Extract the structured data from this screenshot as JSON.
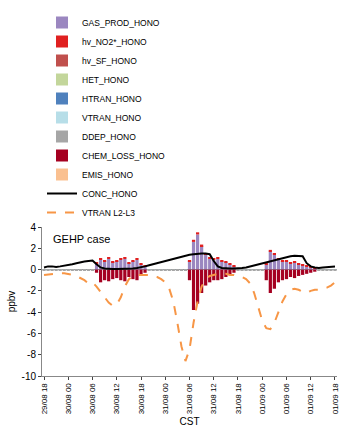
{
  "chart_data": {
    "type": "bar",
    "stacked": true,
    "grid": false,
    "legend": "top",
    "x_label": "CST",
    "y_label": "ppbv",
    "annotations": [
      {
        "text": "GEHP case"
      }
    ],
    "ylim": [
      -10,
      4
    ],
    "yticks": [
      -10,
      -8,
      -6,
      -4,
      -2,
      0,
      2,
      4
    ],
    "categories": [
      "29/08 18",
      null,
      null,
      null,
      null,
      null,
      "30/08 00",
      null,
      null,
      null,
      null,
      null,
      "30/08 06",
      null,
      null,
      null,
      null,
      null,
      "30/08 12",
      null,
      null,
      null,
      null,
      null,
      "30/08 18",
      null,
      null,
      null,
      null,
      null,
      "31/08 00",
      null,
      null,
      null,
      null,
      null,
      "31/08 06",
      null,
      null,
      null,
      null,
      null,
      "31/08 12",
      null,
      null,
      null,
      null,
      null,
      "31/08 18",
      null,
      null,
      null,
      null,
      null,
      "01/09 00",
      null,
      null,
      null,
      null,
      null,
      "01/09 06",
      null,
      null,
      null,
      null,
      null,
      "01/09 12",
      null,
      null,
      null,
      null,
      null,
      "01/09 18"
    ],
    "series": [
      {
        "name": "GAS_PROD_HONO",
        "type": "bar",
        "color": "#9b87c0",
        "values": [
          0,
          0,
          0,
          0,
          0,
          0,
          0,
          0,
          0,
          0,
          0,
          0,
          0,
          0.6,
          0.9,
          0.8,
          1.0,
          0.7,
          0.8,
          0.9,
          1.0,
          0.6,
          0.8,
          0.9,
          0.5,
          0.3,
          0,
          0,
          0,
          0,
          0,
          0,
          0,
          0,
          0,
          0,
          0.8,
          2.6,
          3.3,
          2.2,
          1.4,
          1.0,
          0.9,
          1.0,
          0.8,
          0.7,
          0.5,
          0.3,
          0,
          0,
          0,
          0,
          0,
          0,
          0,
          0.5,
          1.7,
          1.4,
          0.9,
          0.8,
          0.8,
          0.6,
          0.7,
          0.5,
          0.4,
          0.3,
          0.2,
          0.1,
          0,
          0,
          0,
          0,
          0
        ]
      },
      {
        "name": "hv_NO2*_HONO",
        "type": "bar",
        "color": "#e02020",
        "values": [
          0,
          0,
          0,
          0,
          0,
          0,
          0,
          0,
          0,
          0,
          0,
          0,
          0,
          0.05,
          0.1,
          0.1,
          0.15,
          0.1,
          0.1,
          0.15,
          0.15,
          0.1,
          0.1,
          0.1,
          0.05,
          0.05,
          0,
          0,
          0,
          0,
          0,
          0,
          0,
          0,
          0,
          0,
          0.1,
          0.2,
          0.2,
          0.15,
          0.15,
          0.1,
          0.1,
          0.1,
          0.1,
          0.1,
          0.05,
          0.05,
          0,
          0,
          0,
          0,
          0,
          0,
          0,
          0.05,
          0.15,
          0.15,
          0.1,
          0.1,
          0.1,
          0.1,
          0.1,
          0.05,
          0.05,
          0.05,
          0.05,
          0.05,
          0,
          0,
          0,
          0,
          0
        ]
      },
      {
        "name": "hv_SF_HONO",
        "type": "bar",
        "color": "#c0504d",
        "values": [
          0,
          0,
          0,
          0,
          0,
          0,
          0,
          0,
          0,
          0,
          0,
          0,
          0,
          0,
          0,
          0,
          0,
          0,
          0,
          0,
          0,
          0,
          0,
          0,
          0,
          0,
          0,
          0,
          0,
          0,
          0,
          0,
          0,
          0,
          0,
          0,
          0,
          0,
          0,
          0,
          0,
          0,
          0,
          0,
          0,
          0,
          0,
          0,
          0,
          0,
          0,
          0,
          0,
          0,
          0,
          0,
          0,
          0,
          0,
          0,
          0,
          0,
          0,
          0,
          0,
          0,
          0,
          0,
          0,
          0,
          0,
          0,
          0
        ]
      },
      {
        "name": "HET_HONO",
        "type": "bar",
        "color": "#c3d69b",
        "values": [
          0,
          0,
          0,
          0,
          0,
          0,
          0,
          0,
          0,
          0,
          0,
          0,
          0,
          0,
          0,
          0,
          0,
          0,
          0,
          0,
          0,
          0,
          0,
          0,
          0,
          0,
          0,
          0,
          0,
          0,
          0,
          0,
          0,
          0,
          0,
          0,
          0,
          0,
          0,
          0,
          0,
          0,
          0,
          0,
          0,
          0,
          0,
          0,
          0,
          0,
          0,
          0,
          0,
          0,
          0,
          0,
          0,
          0,
          0,
          0,
          0,
          0,
          0,
          0,
          0,
          0,
          0,
          0,
          0,
          0,
          0,
          0,
          0
        ]
      },
      {
        "name": "HTRAN_HONO",
        "type": "bar",
        "color": "#4f81bd",
        "values": [
          0,
          0,
          0,
          0,
          0,
          0,
          0,
          0,
          0,
          0,
          0,
          0,
          0,
          0,
          0,
          0,
          0,
          0,
          0,
          0,
          0,
          0,
          0,
          0,
          0,
          0,
          0,
          0,
          0,
          0,
          0,
          0,
          0,
          0,
          0,
          0,
          0,
          0,
          0,
          0,
          0,
          0,
          0,
          0,
          0,
          0,
          0,
          0,
          0,
          0,
          0,
          0,
          0,
          0,
          0,
          0,
          0,
          0,
          0,
          0,
          0,
          0,
          0,
          0,
          0,
          0,
          0,
          0,
          0,
          0,
          0,
          0,
          0
        ]
      },
      {
        "name": "VTRAN_HONO",
        "type": "bar",
        "color": "#b7dee8",
        "values": [
          0.05,
          0.05,
          0.05,
          0.05,
          0.05,
          0.05,
          0.05,
          0.05,
          0.05,
          0.05,
          0.05,
          0.05,
          0.05,
          0,
          0,
          0,
          0,
          0,
          0,
          0,
          0,
          0,
          0,
          0,
          0,
          0,
          0.05,
          0.05,
          0.05,
          0.05,
          0.05,
          0.05,
          0.05,
          0.05,
          0.05,
          0.05,
          0,
          0,
          0,
          0,
          0,
          0,
          0,
          0,
          0,
          0,
          0,
          0,
          0.05,
          0.05,
          0.05,
          0.05,
          0.05,
          0.05,
          0.05,
          0,
          0,
          0,
          0,
          0,
          0,
          0,
          0,
          0,
          0,
          0,
          0,
          0,
          0.05,
          0.05,
          0.05,
          0.05,
          0.05
        ]
      },
      {
        "name": "DDEP_HONO",
        "type": "bar",
        "color": "#a6a6a6",
        "values": [
          -0.05,
          -0.05,
          -0.05,
          -0.05,
          -0.05,
          -0.05,
          -0.05,
          -0.05,
          -0.05,
          -0.05,
          -0.05,
          -0.05,
          -0.05,
          0,
          0,
          0,
          0,
          0,
          0,
          0,
          0,
          0,
          0,
          0,
          0,
          0,
          -0.05,
          -0.05,
          -0.05,
          -0.05,
          -0.05,
          -0.05,
          -0.05,
          -0.05,
          -0.05,
          -0.05,
          0,
          0,
          0,
          0,
          0,
          0,
          0,
          0,
          0,
          0,
          0,
          0,
          -0.05,
          -0.05,
          -0.05,
          -0.05,
          -0.05,
          -0.05,
          -0.05,
          0,
          0,
          0,
          0,
          0,
          0,
          0,
          0,
          0,
          0,
          0,
          0,
          0,
          -0.05,
          -0.05,
          -0.05,
          -0.05,
          -0.05
        ]
      },
      {
        "name": "CHEM_LOSS_HONO",
        "type": "bar",
        "color": "#a50021",
        "values": [
          0,
          0,
          0,
          0,
          0,
          0,
          0,
          0,
          0,
          0,
          0,
          0,
          0,
          -0.3,
          -1.2,
          -1.0,
          -1.1,
          -0.9,
          -0.8,
          -1.0,
          -1.1,
          -0.7,
          -0.9,
          -1.0,
          -0.6,
          -0.3,
          0,
          0,
          0,
          0,
          0,
          0,
          0,
          0,
          0,
          0,
          -1.0,
          -3.8,
          -3.2,
          -2.2,
          -1.5,
          -1.2,
          -1.0,
          -1.0,
          -0.9,
          -0.7,
          -0.5,
          -0.3,
          0,
          0,
          0,
          0,
          0,
          0,
          0,
          -1.0,
          -2.2,
          -1.8,
          -1.2,
          -1.0,
          -0.9,
          -0.7,
          -0.8,
          -0.6,
          -0.5,
          -0.4,
          -0.3,
          -0.2,
          0,
          0,
          0,
          0,
          0
        ]
      },
      {
        "name": "EMIS_HONO",
        "type": "bar",
        "color": "#fac090",
        "values": [
          0,
          0,
          0,
          0,
          0,
          0,
          0,
          0,
          0,
          0,
          0,
          0,
          0,
          0,
          0,
          0,
          0,
          0,
          0,
          0,
          0,
          0,
          0,
          0,
          0,
          0,
          0,
          0,
          0,
          0,
          0,
          0,
          0,
          0,
          0,
          0,
          0,
          0,
          0,
          0,
          0,
          0,
          0,
          0,
          0,
          0,
          0,
          0,
          0,
          0,
          0,
          0,
          0,
          0,
          0,
          0,
          0,
          0,
          0,
          0,
          0,
          0,
          0,
          0,
          0,
          0,
          0,
          0,
          0,
          0,
          0,
          0,
          0
        ]
      },
      {
        "name": "CONC_HONO",
        "type": "line",
        "color": "#000000",
        "line_style": "solid",
        "values": [
          0.2,
          0.3,
          0.3,
          0.25,
          0.3,
          0.35,
          0.45,
          0.5,
          0.6,
          0.7,
          0.75,
          0.8,
          0.85,
          0.5,
          0.2,
          0.1,
          0.05,
          0.05,
          0.05,
          0.05,
          0.05,
          0.1,
          0.1,
          0.15,
          0.2,
          0.3,
          0.4,
          0.5,
          0.6,
          0.7,
          0.8,
          0.9,
          1.0,
          1.1,
          1.25,
          1.35,
          1.4,
          1.45,
          1.5,
          1.5,
          1.5,
          1.45,
          0.8,
          0.3,
          0.15,
          0.1,
          0.1,
          0.1,
          0.1,
          0.15,
          0.2,
          0.3,
          0.4,
          0.5,
          0.6,
          0.7,
          0.8,
          0.9,
          1.0,
          1.1,
          1.2,
          1.25,
          1.3,
          1.3,
          1.25,
          0.6,
          0.3,
          0.2,
          0.15,
          0.2,
          0.25,
          0.3,
          0.3
        ]
      },
      {
        "name": "VTRAN L2-L3",
        "type": "line",
        "color": "#f79646",
        "line_style": "dashed",
        "values": [
          -0.5,
          -0.45,
          -0.4,
          -0.4,
          -0.35,
          -0.35,
          -0.4,
          -0.5,
          -0.6,
          -0.8,
          -1.0,
          -1.3,
          -1.2,
          -1.6,
          -2.1,
          -2.6,
          -3.1,
          -3.4,
          -3.3,
          -2.6,
          -1.6,
          -0.9,
          -0.6,
          -0.5,
          -0.5,
          -0.5,
          -0.5,
          -0.6,
          -0.7,
          -0.9,
          -1.2,
          -1.8,
          -3.0,
          -5.0,
          -7.2,
          -8.6,
          -7.5,
          -5.0,
          -3.0,
          -1.6,
          -0.9,
          -0.6,
          -0.5,
          -0.4,
          -0.4,
          -0.4,
          -0.5,
          -0.5,
          -0.6,
          -0.7,
          -0.9,
          -1.3,
          -2.2,
          -3.5,
          -4.8,
          -5.5,
          -5.6,
          -5.0,
          -4.0,
          -3.0,
          -2.3,
          -1.9,
          -1.8,
          -1.9,
          -2.1,
          -2.2,
          -2.0,
          -1.9,
          -1.9,
          -1.8,
          -1.7,
          -1.5,
          -1.2
        ]
      }
    ]
  }
}
